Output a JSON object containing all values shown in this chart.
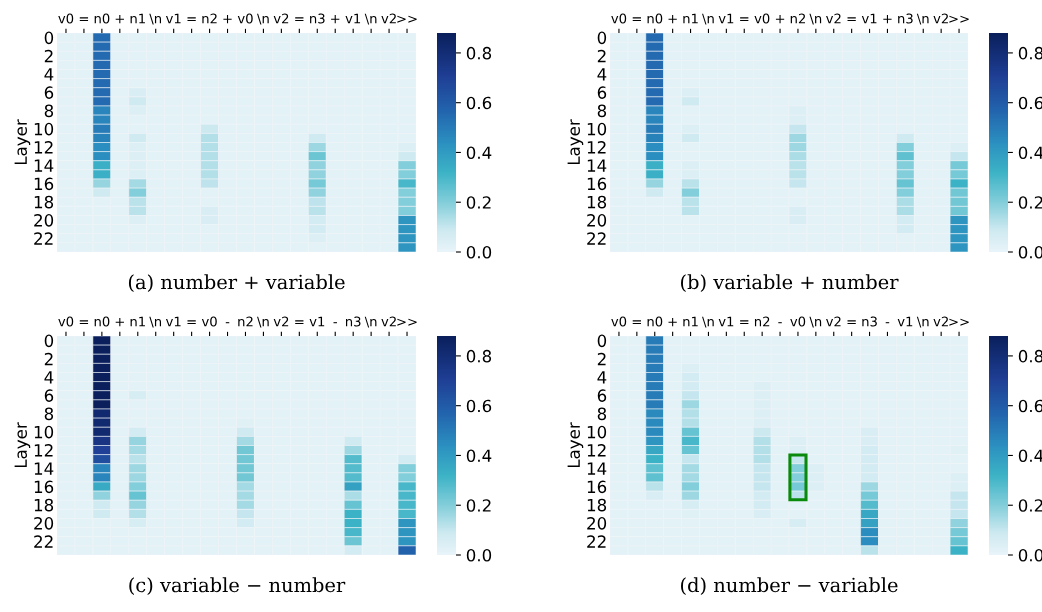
{
  "chart_data": [
    {
      "type": "heatmap",
      "xlabel": "(a) number + variable",
      "ylabel": "Layer",
      "categories": [
        "v0",
        "=",
        "n0",
        "+",
        "n1",
        "\\n",
        "v1",
        "=",
        "n2",
        "+",
        "v0",
        "\\n",
        "v2",
        "=",
        "n3",
        "+",
        "v1",
        "\\n",
        "v2",
        ">>"
      ],
      "y_categories": [
        "0",
        null,
        "2",
        null,
        "4",
        null,
        "6",
        null,
        "8",
        null,
        "10",
        null,
        "12",
        null,
        "14",
        null,
        "16",
        null,
        "18",
        null,
        "20",
        null,
        "22",
        null
      ],
      "clim": [
        0,
        0.88
      ],
      "cticks": [
        {
          "value": 0,
          "label": "0.0"
        },
        {
          "value": 0.2,
          "label": "0.2"
        },
        {
          "value": 0.4,
          "label": "0.4"
        },
        {
          "value": 0.6,
          "label": "0.6"
        },
        {
          "value": 0.8,
          "label": "0.8"
        }
      ],
      "cells": [
        [
          0.02,
          0.02,
          0.55,
          0.02,
          0.02,
          0.02,
          0.02,
          0.02,
          0.02,
          0.02,
          0.02,
          0.02,
          0.02,
          0.02,
          0.02,
          0.02,
          0.02,
          0.02,
          0.02,
          0.02
        ],
        [
          0.02,
          0.02,
          0.55,
          0.02,
          0.02,
          0.02,
          0.02,
          0.02,
          0.02,
          0.02,
          0.02,
          0.02,
          0.02,
          0.02,
          0.02,
          0.02,
          0.02,
          0.02,
          0.02,
          0.02
        ],
        [
          0.02,
          0.02,
          0.55,
          0.02,
          0.02,
          0.02,
          0.02,
          0.02,
          0.02,
          0.02,
          0.02,
          0.02,
          0.02,
          0.02,
          0.02,
          0.02,
          0.02,
          0.02,
          0.02,
          0.02
        ],
        [
          0.02,
          0.02,
          0.55,
          0.02,
          0.02,
          0.02,
          0.02,
          0.02,
          0.02,
          0.02,
          0.02,
          0.02,
          0.02,
          0.02,
          0.02,
          0.02,
          0.02,
          0.02,
          0.02,
          0.02
        ],
        [
          0.02,
          0.02,
          0.55,
          0.02,
          0.02,
          0.02,
          0.02,
          0.02,
          0.02,
          0.02,
          0.02,
          0.02,
          0.02,
          0.02,
          0.02,
          0.02,
          0.02,
          0.02,
          0.02,
          0.02
        ],
        [
          0.02,
          0.02,
          0.55,
          0.02,
          0.02,
          0.02,
          0.02,
          0.02,
          0.02,
          0.02,
          0.02,
          0.02,
          0.02,
          0.02,
          0.02,
          0.02,
          0.02,
          0.02,
          0.02,
          0.02
        ],
        [
          0.02,
          0.02,
          0.55,
          0.02,
          0.05,
          0.02,
          0.02,
          0.02,
          0.02,
          0.02,
          0.02,
          0.02,
          0.02,
          0.02,
          0.02,
          0.02,
          0.02,
          0.02,
          0.02,
          0.02
        ],
        [
          0.02,
          0.02,
          0.55,
          0.02,
          0.08,
          0.02,
          0.02,
          0.02,
          0.02,
          0.02,
          0.02,
          0.02,
          0.02,
          0.02,
          0.02,
          0.02,
          0.02,
          0.02,
          0.02,
          0.02
        ],
        [
          0.02,
          0.02,
          0.47,
          0.02,
          0.04,
          0.02,
          0.02,
          0.02,
          0.02,
          0.02,
          0.02,
          0.02,
          0.02,
          0.02,
          0.02,
          0.02,
          0.02,
          0.02,
          0.02,
          0.02
        ],
        [
          0.02,
          0.02,
          0.47,
          0.02,
          0.02,
          0.02,
          0.02,
          0.02,
          0.02,
          0.02,
          0.02,
          0.02,
          0.02,
          0.02,
          0.02,
          0.02,
          0.02,
          0.02,
          0.02,
          0.02
        ],
        [
          0.02,
          0.02,
          0.5,
          0.02,
          0.02,
          0.02,
          0.02,
          0.02,
          0.09,
          0.02,
          0.02,
          0.02,
          0.02,
          0.02,
          0.02,
          0.02,
          0.02,
          0.02,
          0.02,
          0.02
        ],
        [
          0.02,
          0.02,
          0.48,
          0.02,
          0.08,
          0.02,
          0.02,
          0.02,
          0.13,
          0.02,
          0.02,
          0.02,
          0.02,
          0.02,
          0.08,
          0.02,
          0.02,
          0.02,
          0.02,
          0.02
        ],
        [
          0.02,
          0.02,
          0.44,
          0.02,
          0.04,
          0.02,
          0.02,
          0.02,
          0.13,
          0.02,
          0.02,
          0.02,
          0.02,
          0.02,
          0.16,
          0.02,
          0.02,
          0.02,
          0.02,
          0.04
        ],
        [
          0.02,
          0.02,
          0.44,
          0.02,
          0.04,
          0.02,
          0.02,
          0.02,
          0.13,
          0.02,
          0.02,
          0.02,
          0.02,
          0.02,
          0.24,
          0.02,
          0.02,
          0.02,
          0.02,
          0.08
        ],
        [
          0.02,
          0.02,
          0.33,
          0.02,
          0.04,
          0.02,
          0.02,
          0.02,
          0.13,
          0.02,
          0.02,
          0.02,
          0.02,
          0.02,
          0.18,
          0.02,
          0.02,
          0.02,
          0.02,
          0.2
        ],
        [
          0.02,
          0.02,
          0.33,
          0.02,
          0.04,
          0.02,
          0.02,
          0.02,
          0.13,
          0.02,
          0.02,
          0.02,
          0.02,
          0.02,
          0.18,
          0.02,
          0.02,
          0.02,
          0.02,
          0.2
        ],
        [
          0.02,
          0.02,
          0.17,
          0.02,
          0.15,
          0.02,
          0.02,
          0.02,
          0.11,
          0.02,
          0.02,
          0.02,
          0.02,
          0.02,
          0.22,
          0.02,
          0.02,
          0.02,
          0.02,
          0.3
        ],
        [
          0.02,
          0.02,
          0.08,
          0.02,
          0.2,
          0.02,
          0.02,
          0.02,
          0.02,
          0.02,
          0.02,
          0.02,
          0.02,
          0.02,
          0.18,
          0.02,
          0.02,
          0.02,
          0.02,
          0.2
        ],
        [
          0.02,
          0.02,
          0.02,
          0.02,
          0.12,
          0.02,
          0.02,
          0.02,
          0.02,
          0.02,
          0.02,
          0.02,
          0.02,
          0.02,
          0.11,
          0.02,
          0.02,
          0.02,
          0.02,
          0.2
        ],
        [
          0.02,
          0.02,
          0.02,
          0.02,
          0.12,
          0.02,
          0.02,
          0.02,
          0.05,
          0.02,
          0.02,
          0.02,
          0.02,
          0.02,
          0.12,
          0.02,
          0.02,
          0.02,
          0.02,
          0.2
        ],
        [
          0.02,
          0.02,
          0.02,
          0.02,
          0.04,
          0.02,
          0.02,
          0.02,
          0.05,
          0.02,
          0.02,
          0.02,
          0.02,
          0.02,
          0.07,
          0.02,
          0.02,
          0.02,
          0.02,
          0.42
        ],
        [
          0.02,
          0.02,
          0.02,
          0.02,
          0.02,
          0.02,
          0.02,
          0.02,
          0.02,
          0.02,
          0.02,
          0.02,
          0.02,
          0.02,
          0.07,
          0.02,
          0.02,
          0.02,
          0.02,
          0.42
        ],
        [
          0.02,
          0.02,
          0.02,
          0.02,
          0.02,
          0.02,
          0.02,
          0.02,
          0.02,
          0.02,
          0.02,
          0.02,
          0.02,
          0.02,
          0.04,
          0.02,
          0.02,
          0.02,
          0.02,
          0.42
        ],
        [
          0.02,
          0.02,
          0.02,
          0.02,
          0.02,
          0.02,
          0.02,
          0.02,
          0.02,
          0.02,
          0.02,
          0.02,
          0.02,
          0.02,
          0.02,
          0.02,
          0.02,
          0.02,
          0.02,
          0.42
        ]
      ]
    },
    {
      "type": "heatmap",
      "xlabel": "(b) variable + number",
      "ylabel": "Layer",
      "categories": [
        "v0",
        "=",
        "n0",
        "+",
        "n1",
        "\\n",
        "v1",
        "=",
        "v0",
        "+",
        "n2",
        "\\n",
        "v2",
        "=",
        "v1",
        "+",
        "n3",
        "\\n",
        "v2",
        ">>"
      ],
      "y_categories": [
        "0",
        null,
        "2",
        null,
        "4",
        null,
        "6",
        null,
        "8",
        null,
        "10",
        null,
        "12",
        null,
        "14",
        null,
        "16",
        null,
        "18",
        null,
        "20",
        null,
        "22",
        null
      ],
      "clim": [
        0,
        0.88
      ],
      "cticks": [
        {
          "value": 0,
          "label": "0.0"
        },
        {
          "value": 0.2,
          "label": "0.2"
        },
        {
          "value": 0.4,
          "label": "0.4"
        },
        {
          "value": 0.6,
          "label": "0.6"
        },
        {
          "value": 0.8,
          "label": "0.8"
        }
      ],
      "cells": [
        [
          0.02,
          0.02,
          0.55,
          0.02,
          0.02,
          0.02,
          0.02,
          0.02,
          0.02,
          0.02,
          0.02,
          0.02,
          0.02,
          0.02,
          0.02,
          0.02,
          0.02,
          0.02,
          0.02,
          0.02
        ],
        [
          0.02,
          0.02,
          0.55,
          0.02,
          0.02,
          0.02,
          0.02,
          0.02,
          0.02,
          0.02,
          0.02,
          0.02,
          0.02,
          0.02,
          0.02,
          0.02,
          0.02,
          0.02,
          0.02,
          0.02
        ],
        [
          0.02,
          0.02,
          0.55,
          0.02,
          0.02,
          0.02,
          0.02,
          0.02,
          0.02,
          0.02,
          0.02,
          0.02,
          0.02,
          0.02,
          0.02,
          0.02,
          0.02,
          0.02,
          0.02,
          0.02
        ],
        [
          0.02,
          0.02,
          0.55,
          0.02,
          0.02,
          0.02,
          0.02,
          0.02,
          0.02,
          0.02,
          0.02,
          0.02,
          0.02,
          0.02,
          0.02,
          0.02,
          0.02,
          0.02,
          0.02,
          0.02
        ],
        [
          0.02,
          0.02,
          0.55,
          0.02,
          0.02,
          0.02,
          0.02,
          0.02,
          0.02,
          0.02,
          0.02,
          0.02,
          0.02,
          0.02,
          0.02,
          0.02,
          0.02,
          0.02,
          0.02,
          0.02
        ],
        [
          0.02,
          0.02,
          0.55,
          0.02,
          0.02,
          0.02,
          0.02,
          0.02,
          0.02,
          0.02,
          0.02,
          0.02,
          0.02,
          0.02,
          0.02,
          0.02,
          0.02,
          0.02,
          0.02,
          0.02
        ],
        [
          0.02,
          0.02,
          0.55,
          0.02,
          0.04,
          0.02,
          0.02,
          0.02,
          0.02,
          0.02,
          0.02,
          0.02,
          0.02,
          0.02,
          0.02,
          0.02,
          0.02,
          0.02,
          0.02,
          0.02
        ],
        [
          0.02,
          0.02,
          0.55,
          0.02,
          0.08,
          0.02,
          0.02,
          0.02,
          0.02,
          0.02,
          0.02,
          0.02,
          0.02,
          0.02,
          0.02,
          0.02,
          0.02,
          0.02,
          0.02,
          0.02
        ],
        [
          0.02,
          0.02,
          0.47,
          0.02,
          0.02,
          0.02,
          0.02,
          0.02,
          0.02,
          0.02,
          0.04,
          0.02,
          0.02,
          0.02,
          0.02,
          0.02,
          0.02,
          0.02,
          0.02,
          0.02
        ],
        [
          0.02,
          0.02,
          0.47,
          0.02,
          0.02,
          0.02,
          0.02,
          0.02,
          0.02,
          0.02,
          0.04,
          0.02,
          0.02,
          0.02,
          0.02,
          0.02,
          0.02,
          0.02,
          0.02,
          0.02
        ],
        [
          0.02,
          0.02,
          0.5,
          0.02,
          0.04,
          0.02,
          0.02,
          0.02,
          0.02,
          0.02,
          0.1,
          0.02,
          0.02,
          0.02,
          0.02,
          0.02,
          0.02,
          0.02,
          0.02,
          0.02
        ],
        [
          0.02,
          0.02,
          0.48,
          0.02,
          0.08,
          0.02,
          0.02,
          0.02,
          0.02,
          0.02,
          0.16,
          0.02,
          0.02,
          0.02,
          0.02,
          0.02,
          0.08,
          0.02,
          0.02,
          0.02
        ],
        [
          0.02,
          0.02,
          0.44,
          0.02,
          0.02,
          0.02,
          0.02,
          0.02,
          0.02,
          0.02,
          0.16,
          0.02,
          0.02,
          0.02,
          0.02,
          0.02,
          0.2,
          0.02,
          0.02,
          0.04
        ],
        [
          0.02,
          0.02,
          0.44,
          0.02,
          0.02,
          0.02,
          0.02,
          0.02,
          0.02,
          0.02,
          0.14,
          0.02,
          0.02,
          0.02,
          0.02,
          0.02,
          0.26,
          0.02,
          0.02,
          0.1
        ],
        [
          0.02,
          0.02,
          0.33,
          0.02,
          0.04,
          0.02,
          0.02,
          0.02,
          0.02,
          0.02,
          0.12,
          0.02,
          0.02,
          0.02,
          0.02,
          0.02,
          0.2,
          0.02,
          0.02,
          0.22
        ],
        [
          0.02,
          0.02,
          0.33,
          0.02,
          0.04,
          0.02,
          0.02,
          0.02,
          0.02,
          0.02,
          0.12,
          0.02,
          0.02,
          0.02,
          0.02,
          0.02,
          0.2,
          0.02,
          0.02,
          0.22
        ],
        [
          0.02,
          0.02,
          0.17,
          0.02,
          0.12,
          0.02,
          0.02,
          0.02,
          0.02,
          0.02,
          0.1,
          0.02,
          0.02,
          0.02,
          0.02,
          0.02,
          0.25,
          0.02,
          0.02,
          0.32
        ],
        [
          0.02,
          0.02,
          0.08,
          0.02,
          0.2,
          0.02,
          0.02,
          0.02,
          0.02,
          0.02,
          0.02,
          0.02,
          0.02,
          0.02,
          0.02,
          0.02,
          0.2,
          0.02,
          0.02,
          0.23
        ],
        [
          0.02,
          0.02,
          0.02,
          0.02,
          0.12,
          0.02,
          0.02,
          0.02,
          0.02,
          0.02,
          0.02,
          0.02,
          0.02,
          0.02,
          0.02,
          0.02,
          0.14,
          0.02,
          0.02,
          0.23
        ],
        [
          0.02,
          0.02,
          0.02,
          0.02,
          0.12,
          0.02,
          0.02,
          0.02,
          0.02,
          0.02,
          0.05,
          0.02,
          0.02,
          0.02,
          0.02,
          0.02,
          0.14,
          0.02,
          0.02,
          0.23
        ],
        [
          0.02,
          0.02,
          0.02,
          0.02,
          0.02,
          0.02,
          0.02,
          0.02,
          0.02,
          0.02,
          0.05,
          0.02,
          0.02,
          0.02,
          0.02,
          0.02,
          0.07,
          0.02,
          0.02,
          0.42
        ],
        [
          0.02,
          0.02,
          0.02,
          0.02,
          0.02,
          0.02,
          0.02,
          0.02,
          0.02,
          0.02,
          0.02,
          0.02,
          0.02,
          0.02,
          0.02,
          0.02,
          0.07,
          0.02,
          0.02,
          0.42
        ],
        [
          0.02,
          0.02,
          0.02,
          0.02,
          0.02,
          0.02,
          0.02,
          0.02,
          0.02,
          0.02,
          0.02,
          0.02,
          0.02,
          0.02,
          0.02,
          0.02,
          0.02,
          0.02,
          0.02,
          0.42
        ],
        [
          0.02,
          0.02,
          0.02,
          0.02,
          0.02,
          0.02,
          0.02,
          0.02,
          0.02,
          0.02,
          0.02,
          0.02,
          0.02,
          0.02,
          0.02,
          0.02,
          0.02,
          0.02,
          0.02,
          0.42
        ]
      ]
    },
    {
      "type": "heatmap",
      "xlabel": "(c) variable − number",
      "ylabel": "Layer",
      "categories": [
        "v0",
        "=",
        "n0",
        "+",
        "n1",
        "\\n",
        "v1",
        "=",
        "v0",
        "-",
        "n2",
        "\\n",
        "v2",
        "=",
        "v1",
        "-",
        "n3",
        "\\n",
        "v2",
        ">>"
      ],
      "y_categories": [
        "0",
        null,
        "2",
        null,
        "4",
        null,
        "6",
        null,
        "8",
        null,
        "10",
        null,
        "12",
        null,
        "14",
        null,
        "16",
        null,
        "18",
        null,
        "20",
        null,
        "22",
        null
      ],
      "clim": [
        0,
        0.88
      ],
      "cticks": [
        {
          "value": 0,
          "label": "0.0"
        },
        {
          "value": 0.2,
          "label": "0.2"
        },
        {
          "value": 0.4,
          "label": "0.4"
        },
        {
          "value": 0.6,
          "label": "0.6"
        },
        {
          "value": 0.8,
          "label": "0.8"
        }
      ],
      "cells": [
        [
          0.02,
          0.02,
          0.88,
          0.02,
          0.02,
          0.02,
          0.02,
          0.02,
          0.02,
          0.02,
          0.02,
          0.02,
          0.02,
          0.02,
          0.02,
          0.02,
          0.02,
          0.02,
          0.02,
          0.02
        ],
        [
          0.02,
          0.02,
          0.88,
          0.02,
          0.02,
          0.02,
          0.02,
          0.02,
          0.02,
          0.02,
          0.02,
          0.02,
          0.02,
          0.02,
          0.02,
          0.02,
          0.02,
          0.02,
          0.02,
          0.02
        ],
        [
          0.02,
          0.02,
          0.88,
          0.02,
          0.02,
          0.02,
          0.02,
          0.02,
          0.02,
          0.02,
          0.02,
          0.02,
          0.02,
          0.02,
          0.02,
          0.02,
          0.02,
          0.02,
          0.02,
          0.02
        ],
        [
          0.02,
          0.02,
          0.88,
          0.02,
          0.02,
          0.02,
          0.02,
          0.02,
          0.02,
          0.02,
          0.02,
          0.02,
          0.02,
          0.02,
          0.02,
          0.02,
          0.02,
          0.02,
          0.02,
          0.02
        ],
        [
          0.02,
          0.02,
          0.88,
          0.02,
          0.02,
          0.02,
          0.02,
          0.02,
          0.02,
          0.02,
          0.02,
          0.02,
          0.02,
          0.02,
          0.02,
          0.02,
          0.02,
          0.02,
          0.02,
          0.02
        ],
        [
          0.02,
          0.02,
          0.88,
          0.02,
          0.02,
          0.02,
          0.02,
          0.02,
          0.02,
          0.02,
          0.02,
          0.02,
          0.02,
          0.02,
          0.02,
          0.02,
          0.02,
          0.02,
          0.02,
          0.02
        ],
        [
          0.02,
          0.02,
          0.88,
          0.02,
          0.06,
          0.02,
          0.02,
          0.02,
          0.02,
          0.02,
          0.02,
          0.02,
          0.02,
          0.02,
          0.02,
          0.02,
          0.02,
          0.02,
          0.02,
          0.02
        ],
        [
          0.02,
          0.02,
          0.88,
          0.02,
          0.02,
          0.02,
          0.02,
          0.02,
          0.02,
          0.02,
          0.02,
          0.02,
          0.02,
          0.02,
          0.02,
          0.02,
          0.02,
          0.02,
          0.02,
          0.02
        ],
        [
          0.02,
          0.02,
          0.82,
          0.02,
          0.02,
          0.02,
          0.02,
          0.02,
          0.02,
          0.02,
          0.02,
          0.02,
          0.02,
          0.02,
          0.02,
          0.02,
          0.02,
          0.02,
          0.02,
          0.02
        ],
        [
          0.02,
          0.02,
          0.82,
          0.02,
          0.02,
          0.02,
          0.02,
          0.02,
          0.02,
          0.02,
          0.03,
          0.02,
          0.02,
          0.02,
          0.02,
          0.02,
          0.02,
          0.02,
          0.02,
          0.02
        ],
        [
          0.02,
          0.02,
          0.82,
          0.02,
          0.07,
          0.02,
          0.02,
          0.02,
          0.02,
          0.02,
          0.08,
          0.02,
          0.02,
          0.02,
          0.02,
          0.02,
          0.02,
          0.02,
          0.02,
          0.02
        ],
        [
          0.02,
          0.02,
          0.76,
          0.02,
          0.17,
          0.02,
          0.02,
          0.02,
          0.02,
          0.02,
          0.15,
          0.02,
          0.02,
          0.02,
          0.02,
          0.02,
          0.08,
          0.02,
          0.02,
          0.02
        ],
        [
          0.02,
          0.02,
          0.7,
          0.02,
          0.15,
          0.02,
          0.02,
          0.02,
          0.02,
          0.02,
          0.23,
          0.02,
          0.02,
          0.02,
          0.02,
          0.02,
          0.16,
          0.02,
          0.02,
          0.02
        ],
        [
          0.02,
          0.02,
          0.65,
          0.02,
          0.12,
          0.02,
          0.02,
          0.02,
          0.02,
          0.02,
          0.23,
          0.02,
          0.02,
          0.02,
          0.02,
          0.02,
          0.28,
          0.02,
          0.02,
          0.07
        ],
        [
          0.02,
          0.02,
          0.47,
          0.02,
          0.16,
          0.02,
          0.02,
          0.02,
          0.02,
          0.02,
          0.23,
          0.02,
          0.02,
          0.02,
          0.02,
          0.02,
          0.28,
          0.02,
          0.02,
          0.2
        ],
        [
          0.02,
          0.02,
          0.47,
          0.02,
          0.16,
          0.02,
          0.02,
          0.02,
          0.02,
          0.02,
          0.23,
          0.02,
          0.02,
          0.02,
          0.02,
          0.02,
          0.28,
          0.02,
          0.02,
          0.2
        ],
        [
          0.02,
          0.02,
          0.35,
          0.02,
          0.2,
          0.02,
          0.02,
          0.02,
          0.02,
          0.02,
          0.15,
          0.02,
          0.02,
          0.02,
          0.02,
          0.02,
          0.38,
          0.02,
          0.02,
          0.3
        ],
        [
          0.02,
          0.02,
          0.18,
          0.02,
          0.25,
          0.02,
          0.02,
          0.02,
          0.02,
          0.02,
          0.15,
          0.02,
          0.02,
          0.02,
          0.02,
          0.02,
          0.14,
          0.02,
          0.02,
          0.3
        ],
        [
          0.02,
          0.02,
          0.08,
          0.02,
          0.17,
          0.02,
          0.02,
          0.02,
          0.02,
          0.02,
          0.15,
          0.02,
          0.02,
          0.02,
          0.02,
          0.02,
          0.25,
          0.02,
          0.02,
          0.3
        ],
        [
          0.02,
          0.02,
          0.08,
          0.02,
          0.13,
          0.02,
          0.02,
          0.02,
          0.02,
          0.02,
          0.1,
          0.02,
          0.02,
          0.02,
          0.02,
          0.02,
          0.32,
          0.02,
          0.02,
          0.3
        ],
        [
          0.02,
          0.02,
          0.02,
          0.02,
          0.06,
          0.02,
          0.02,
          0.02,
          0.02,
          0.02,
          0.07,
          0.02,
          0.02,
          0.02,
          0.02,
          0.02,
          0.32,
          0.02,
          0.02,
          0.42
        ],
        [
          0.02,
          0.02,
          0.02,
          0.02,
          0.02,
          0.02,
          0.02,
          0.02,
          0.02,
          0.02,
          0.02,
          0.02,
          0.02,
          0.02,
          0.02,
          0.02,
          0.3,
          0.02,
          0.02,
          0.42
        ],
        [
          0.02,
          0.02,
          0.02,
          0.02,
          0.02,
          0.02,
          0.02,
          0.02,
          0.02,
          0.02,
          0.02,
          0.02,
          0.02,
          0.02,
          0.02,
          0.02,
          0.24,
          0.02,
          0.02,
          0.42
        ],
        [
          0.02,
          0.02,
          0.02,
          0.02,
          0.02,
          0.02,
          0.02,
          0.02,
          0.02,
          0.02,
          0.02,
          0.02,
          0.02,
          0.02,
          0.02,
          0.02,
          0.07,
          0.02,
          0.02,
          0.58
        ]
      ]
    },
    {
      "type": "heatmap",
      "xlabel": "(d) number − variable",
      "ylabel": "Layer",
      "categories": [
        "v0",
        "=",
        "n0",
        "+",
        "n1",
        "\\n",
        "v1",
        "=",
        "n2",
        "-",
        "v0",
        "\\n",
        "v2",
        "=",
        "n3",
        "-",
        "v1",
        "\\n",
        "v2",
        ">>"
      ],
      "y_categories": [
        "0",
        null,
        "2",
        null,
        "4",
        null,
        "6",
        null,
        "8",
        null,
        "10",
        null,
        "12",
        null,
        "14",
        null,
        "16",
        null,
        "18",
        null,
        "20",
        null,
        "22",
        null
      ],
      "clim": [
        0,
        0.88
      ],
      "cticks": [
        {
          "value": 0,
          "label": "0.0"
        },
        {
          "value": 0.2,
          "label": "0.2"
        },
        {
          "value": 0.4,
          "label": "0.4"
        },
        {
          "value": 0.6,
          "label": "0.6"
        },
        {
          "value": 0.8,
          "label": "0.8"
        }
      ],
      "cells": [
        [
          0.02,
          0.02,
          0.5,
          0.02,
          0.02,
          0.02,
          0.02,
          0.02,
          0.02,
          0.02,
          0.02,
          0.02,
          0.02,
          0.02,
          0.02,
          0.02,
          0.02,
          0.02,
          0.02,
          0.02
        ],
        [
          0.02,
          0.02,
          0.5,
          0.02,
          0.02,
          0.02,
          0.02,
          0.02,
          0.02,
          0.02,
          0.02,
          0.02,
          0.02,
          0.02,
          0.02,
          0.02,
          0.02,
          0.02,
          0.02,
          0.02
        ],
        [
          0.02,
          0.02,
          0.5,
          0.02,
          0.02,
          0.02,
          0.02,
          0.02,
          0.02,
          0.02,
          0.02,
          0.02,
          0.02,
          0.02,
          0.02,
          0.02,
          0.02,
          0.02,
          0.02,
          0.02
        ],
        [
          0.02,
          0.02,
          0.5,
          0.02,
          0.04,
          0.02,
          0.02,
          0.02,
          0.02,
          0.02,
          0.02,
          0.02,
          0.02,
          0.02,
          0.02,
          0.02,
          0.02,
          0.02,
          0.02,
          0.02
        ],
        [
          0.02,
          0.02,
          0.5,
          0.02,
          0.07,
          0.02,
          0.02,
          0.02,
          0.02,
          0.02,
          0.02,
          0.02,
          0.02,
          0.02,
          0.02,
          0.02,
          0.02,
          0.02,
          0.02,
          0.02
        ],
        [
          0.02,
          0.02,
          0.5,
          0.02,
          0.07,
          0.02,
          0.02,
          0.02,
          0.04,
          0.02,
          0.02,
          0.02,
          0.02,
          0.02,
          0.02,
          0.02,
          0.02,
          0.02,
          0.02,
          0.02
        ],
        [
          0.02,
          0.02,
          0.5,
          0.02,
          0.1,
          0.02,
          0.02,
          0.02,
          0.04,
          0.02,
          0.02,
          0.02,
          0.02,
          0.02,
          0.02,
          0.02,
          0.02,
          0.02,
          0.02,
          0.02
        ],
        [
          0.02,
          0.02,
          0.5,
          0.02,
          0.16,
          0.02,
          0.02,
          0.02,
          0.04,
          0.02,
          0.02,
          0.02,
          0.02,
          0.02,
          0.02,
          0.02,
          0.02,
          0.02,
          0.02,
          0.02
        ],
        [
          0.02,
          0.02,
          0.46,
          0.02,
          0.13,
          0.02,
          0.02,
          0.02,
          0.04,
          0.02,
          0.02,
          0.02,
          0.02,
          0.02,
          0.02,
          0.02,
          0.02,
          0.02,
          0.02,
          0.02
        ],
        [
          0.02,
          0.02,
          0.46,
          0.02,
          0.13,
          0.02,
          0.02,
          0.02,
          0.04,
          0.02,
          0.02,
          0.02,
          0.02,
          0.02,
          0.02,
          0.02,
          0.02,
          0.02,
          0.02,
          0.02
        ],
        [
          0.02,
          0.02,
          0.46,
          0.02,
          0.25,
          0.02,
          0.02,
          0.02,
          0.09,
          0.02,
          0.02,
          0.02,
          0.02,
          0.02,
          0.05,
          0.02,
          0.02,
          0.02,
          0.02,
          0.02
        ],
        [
          0.02,
          0.02,
          0.42,
          0.02,
          0.3,
          0.02,
          0.02,
          0.02,
          0.13,
          0.02,
          0.04,
          0.02,
          0.02,
          0.02,
          0.05,
          0.02,
          0.02,
          0.02,
          0.02,
          0.02
        ],
        [
          0.02,
          0.02,
          0.36,
          0.02,
          0.25,
          0.02,
          0.02,
          0.02,
          0.13,
          0.02,
          0.04,
          0.02,
          0.02,
          0.02,
          0.07,
          0.02,
          0.02,
          0.02,
          0.02,
          0.03
        ],
        [
          0.02,
          0.02,
          0.32,
          0.02,
          0.1,
          0.02,
          0.02,
          0.02,
          0.13,
          0.02,
          0.1,
          0.02,
          0.02,
          0.02,
          0.07,
          0.02,
          0.02,
          0.02,
          0.02,
          0.02
        ],
        [
          0.02,
          0.02,
          0.26,
          0.02,
          0.15,
          0.02,
          0.02,
          0.02,
          0.1,
          0.02,
          0.2,
          0.04,
          0.02,
          0.02,
          0.07,
          0.02,
          0.02,
          0.02,
          0.02,
          0.02
        ],
        [
          0.02,
          0.02,
          0.26,
          0.02,
          0.15,
          0.02,
          0.02,
          0.02,
          0.1,
          0.02,
          0.2,
          0.04,
          0.02,
          0.02,
          0.07,
          0.02,
          0.02,
          0.02,
          0.02,
          0.04
        ],
        [
          0.02,
          0.02,
          0.12,
          0.02,
          0.2,
          0.02,
          0.02,
          0.02,
          0.1,
          0.02,
          0.22,
          0.04,
          0.02,
          0.02,
          0.16,
          0.02,
          0.02,
          0.02,
          0.02,
          0.04
        ],
        [
          0.02,
          0.02,
          0.05,
          0.02,
          0.16,
          0.02,
          0.02,
          0.02,
          0.07,
          0.02,
          0.12,
          0.02,
          0.02,
          0.02,
          0.22,
          0.02,
          0.02,
          0.02,
          0.02,
          0.1
        ],
        [
          0.02,
          0.02,
          0.02,
          0.02,
          0.06,
          0.02,
          0.02,
          0.02,
          0.07,
          0.02,
          0.02,
          0.02,
          0.02,
          0.02,
          0.28,
          0.02,
          0.02,
          0.02,
          0.02,
          0.1
        ],
        [
          0.02,
          0.02,
          0.02,
          0.02,
          0.03,
          0.02,
          0.02,
          0.02,
          0.05,
          0.02,
          0.02,
          0.02,
          0.02,
          0.02,
          0.36,
          0.02,
          0.02,
          0.02,
          0.02,
          0.1
        ],
        [
          0.02,
          0.02,
          0.02,
          0.02,
          0.02,
          0.02,
          0.02,
          0.02,
          0.02,
          0.02,
          0.06,
          0.02,
          0.02,
          0.02,
          0.38,
          0.02,
          0.02,
          0.02,
          0.02,
          0.18
        ],
        [
          0.02,
          0.02,
          0.02,
          0.02,
          0.02,
          0.02,
          0.02,
          0.02,
          0.02,
          0.02,
          0.02,
          0.02,
          0.02,
          0.02,
          0.45,
          0.02,
          0.02,
          0.02,
          0.02,
          0.22
        ],
        [
          0.02,
          0.02,
          0.02,
          0.02,
          0.02,
          0.02,
          0.02,
          0.02,
          0.02,
          0.02,
          0.02,
          0.02,
          0.02,
          0.02,
          0.45,
          0.02,
          0.02,
          0.02,
          0.02,
          0.25
        ],
        [
          0.02,
          0.02,
          0.02,
          0.02,
          0.02,
          0.02,
          0.02,
          0.02,
          0.02,
          0.02,
          0.02,
          0.02,
          0.02,
          0.02,
          0.12,
          0.02,
          0.02,
          0.02,
          0.02,
          0.32
        ]
      ]
    }
  ]
}
